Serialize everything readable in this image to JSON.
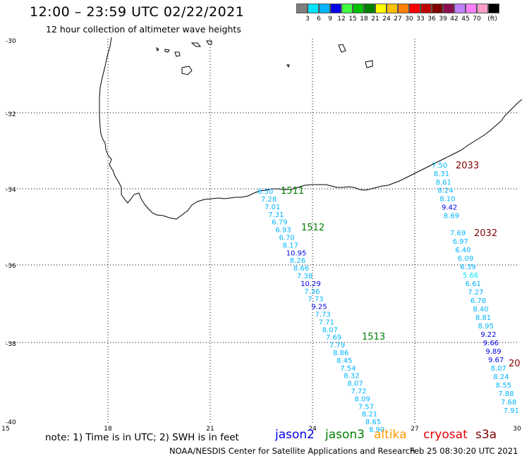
{
  "header": {
    "title": "12:00 – 23:59 UTC 02/22/2021",
    "subtitle": "12 hour collection of altimeter wave heights"
  },
  "legend": {
    "colors": [
      "#7f7f7f",
      "#00e5ff",
      "#00b4ff",
      "#0000e6",
      "#40ff40",
      "#00c000",
      "#008000",
      "#ffff00",
      "#ffc000",
      "#ff7f00",
      "#ff0000",
      "#c00000",
      "#800000",
      "#8b0e4f",
      "#c080ff",
      "#ff80ff",
      "#ff9ec9",
      "#000000"
    ],
    "labels": [
      "3",
      "6",
      "9",
      "12",
      "15",
      "18",
      "21",
      "24",
      "27",
      "30",
      "33",
      "36",
      "39",
      "42",
      "45",
      "70",
      "(ft)"
    ]
  },
  "axes": {
    "y_ticks": [
      "-30",
      "-32",
      "-34",
      "-36",
      "-38",
      "-40"
    ],
    "x_ticks": [
      "15",
      "18",
      "21",
      "24",
      "27",
      "30"
    ]
  },
  "passes": [
    {
      "label": "1511",
      "color": "#008000"
    },
    {
      "label": "1512",
      "color": "#008000"
    },
    {
      "label": "1513",
      "color": "#008000"
    },
    {
      "label": "2032",
      "color": "#800000"
    },
    {
      "label": "2033",
      "color": "#800000"
    },
    {
      "label": "20",
      "color": "#800000"
    }
  ],
  "tracks": {
    "track_a": [
      {
        "v": "7.28",
        "c": "#00b4ff"
      },
      {
        "v": "7.01",
        "c": "#00b4ff"
      },
      {
        "v": "7.31",
        "c": "#00b4ff"
      },
      {
        "v": "6.79",
        "c": "#00b4ff"
      },
      {
        "v": "6.93",
        "c": "#00b4ff"
      },
      {
        "v": "6.70",
        "c": "#00b4ff"
      },
      {
        "v": "8.17",
        "c": "#00b4ff"
      },
      {
        "v": "10.95",
        "c": "#0000e6"
      },
      {
        "v": "8.26",
        "c": "#00b4ff"
      },
      {
        "v": "8.66",
        "c": "#00b4ff"
      },
      {
        "v": "7.38",
        "c": "#00b4ff"
      },
      {
        "v": "10.29",
        "c": "#0000e6"
      },
      {
        "v": "7.36",
        "c": "#00b4ff"
      },
      {
        "v": "7.73",
        "c": "#00b4ff"
      },
      {
        "v": "9.25",
        "c": "#0000e6"
      },
      {
        "v": "7.73",
        "c": "#00b4ff"
      },
      {
        "v": "7.71",
        "c": "#00b4ff"
      },
      {
        "v": "8.07",
        "c": "#00b4ff"
      },
      {
        "v": "7.69",
        "c": "#00b4ff"
      },
      {
        "v": "7.79",
        "c": "#00b4ff"
      },
      {
        "v": "8.86",
        "c": "#00b4ff"
      },
      {
        "v": "8.45",
        "c": "#00b4ff"
      },
      {
        "v": "7.54",
        "c": "#00b4ff"
      },
      {
        "v": "8.32",
        "c": "#00b4ff"
      },
      {
        "v": "8.07",
        "c": "#00b4ff"
      },
      {
        "v": "7.72",
        "c": "#00b4ff"
      },
      {
        "v": "8.09",
        "c": "#00b4ff"
      },
      {
        "v": "7.57",
        "c": "#00b4ff"
      },
      {
        "v": "8.21",
        "c": "#00b4ff"
      },
      {
        "v": "8.65",
        "c": "#00b4ff"
      },
      {
        "v": "8.90",
        "c": "#00b4ff"
      }
    ],
    "track_a_extra": {
      "v": "8.50",
      "c": "#00b4ff"
    },
    "track_b": [
      {
        "v": "7.50",
        "c": "#00b4ff"
      },
      {
        "v": "8.31",
        "c": "#00b4ff"
      },
      {
        "v": "8.61",
        "c": "#00b4ff"
      },
      {
        "v": "8.24",
        "c": "#00b4ff"
      },
      {
        "v": "8.10",
        "c": "#00b4ff"
      },
      {
        "v": "9.42",
        "c": "#0000e6"
      },
      {
        "v": "8.69",
        "c": "#00b4ff"
      }
    ],
    "track_c": [
      {
        "v": "7.69",
        "c": "#00b4ff"
      },
      {
        "v": "6.97",
        "c": "#00b4ff"
      },
      {
        "v": "6.40",
        "c": "#00b4ff"
      },
      {
        "v": "6.09",
        "c": "#00b4ff"
      },
      {
        "v": "6.39",
        "c": "#00b4ff"
      },
      {
        "v": "5.66",
        "c": "#00e5ff"
      },
      {
        "v": "6.61",
        "c": "#00b4ff"
      },
      {
        "v": "7.27",
        "c": "#00b4ff"
      },
      {
        "v": "6.78",
        "c": "#00b4ff"
      },
      {
        "v": "8.40",
        "c": "#00b4ff"
      },
      {
        "v": "8.81",
        "c": "#00b4ff"
      },
      {
        "v": "8.95",
        "c": "#00b4ff"
      },
      {
        "v": "9.22",
        "c": "#0000e6"
      },
      {
        "v": "9.66",
        "c": "#0000e6"
      },
      {
        "v": "9.89",
        "c": "#0000e6"
      },
      {
        "v": "9.67",
        "c": "#0000e6"
      },
      {
        "v": "8.07",
        "c": "#00b4ff"
      },
      {
        "v": "8.24",
        "c": "#00b4ff"
      },
      {
        "v": "8.55",
        "c": "#00b4ff"
      },
      {
        "v": "7.88",
        "c": "#00b4ff"
      },
      {
        "v": "7.68",
        "c": "#00b4ff"
      },
      {
        "v": "7.91",
        "c": "#00b4ff"
      }
    ]
  },
  "footer": {
    "note": "note: 1) Time is in UTC; 2) SWH is in feet",
    "satellites": [
      {
        "name": "jason2",
        "color": "#0000e6"
      },
      {
        "name": "jason3",
        "color": "#008000"
      },
      {
        "name": "altika",
        "color": "#ff9900"
      },
      {
        "name": "cryosat",
        "color": "#e00000"
      },
      {
        "name": "s3a",
        "color": "#800000"
      }
    ],
    "credit": "NOAA/NESDIS Center for Satellite Applications and Research",
    "timestamp": "Feb 25 08:30:20 UTC 2021"
  }
}
